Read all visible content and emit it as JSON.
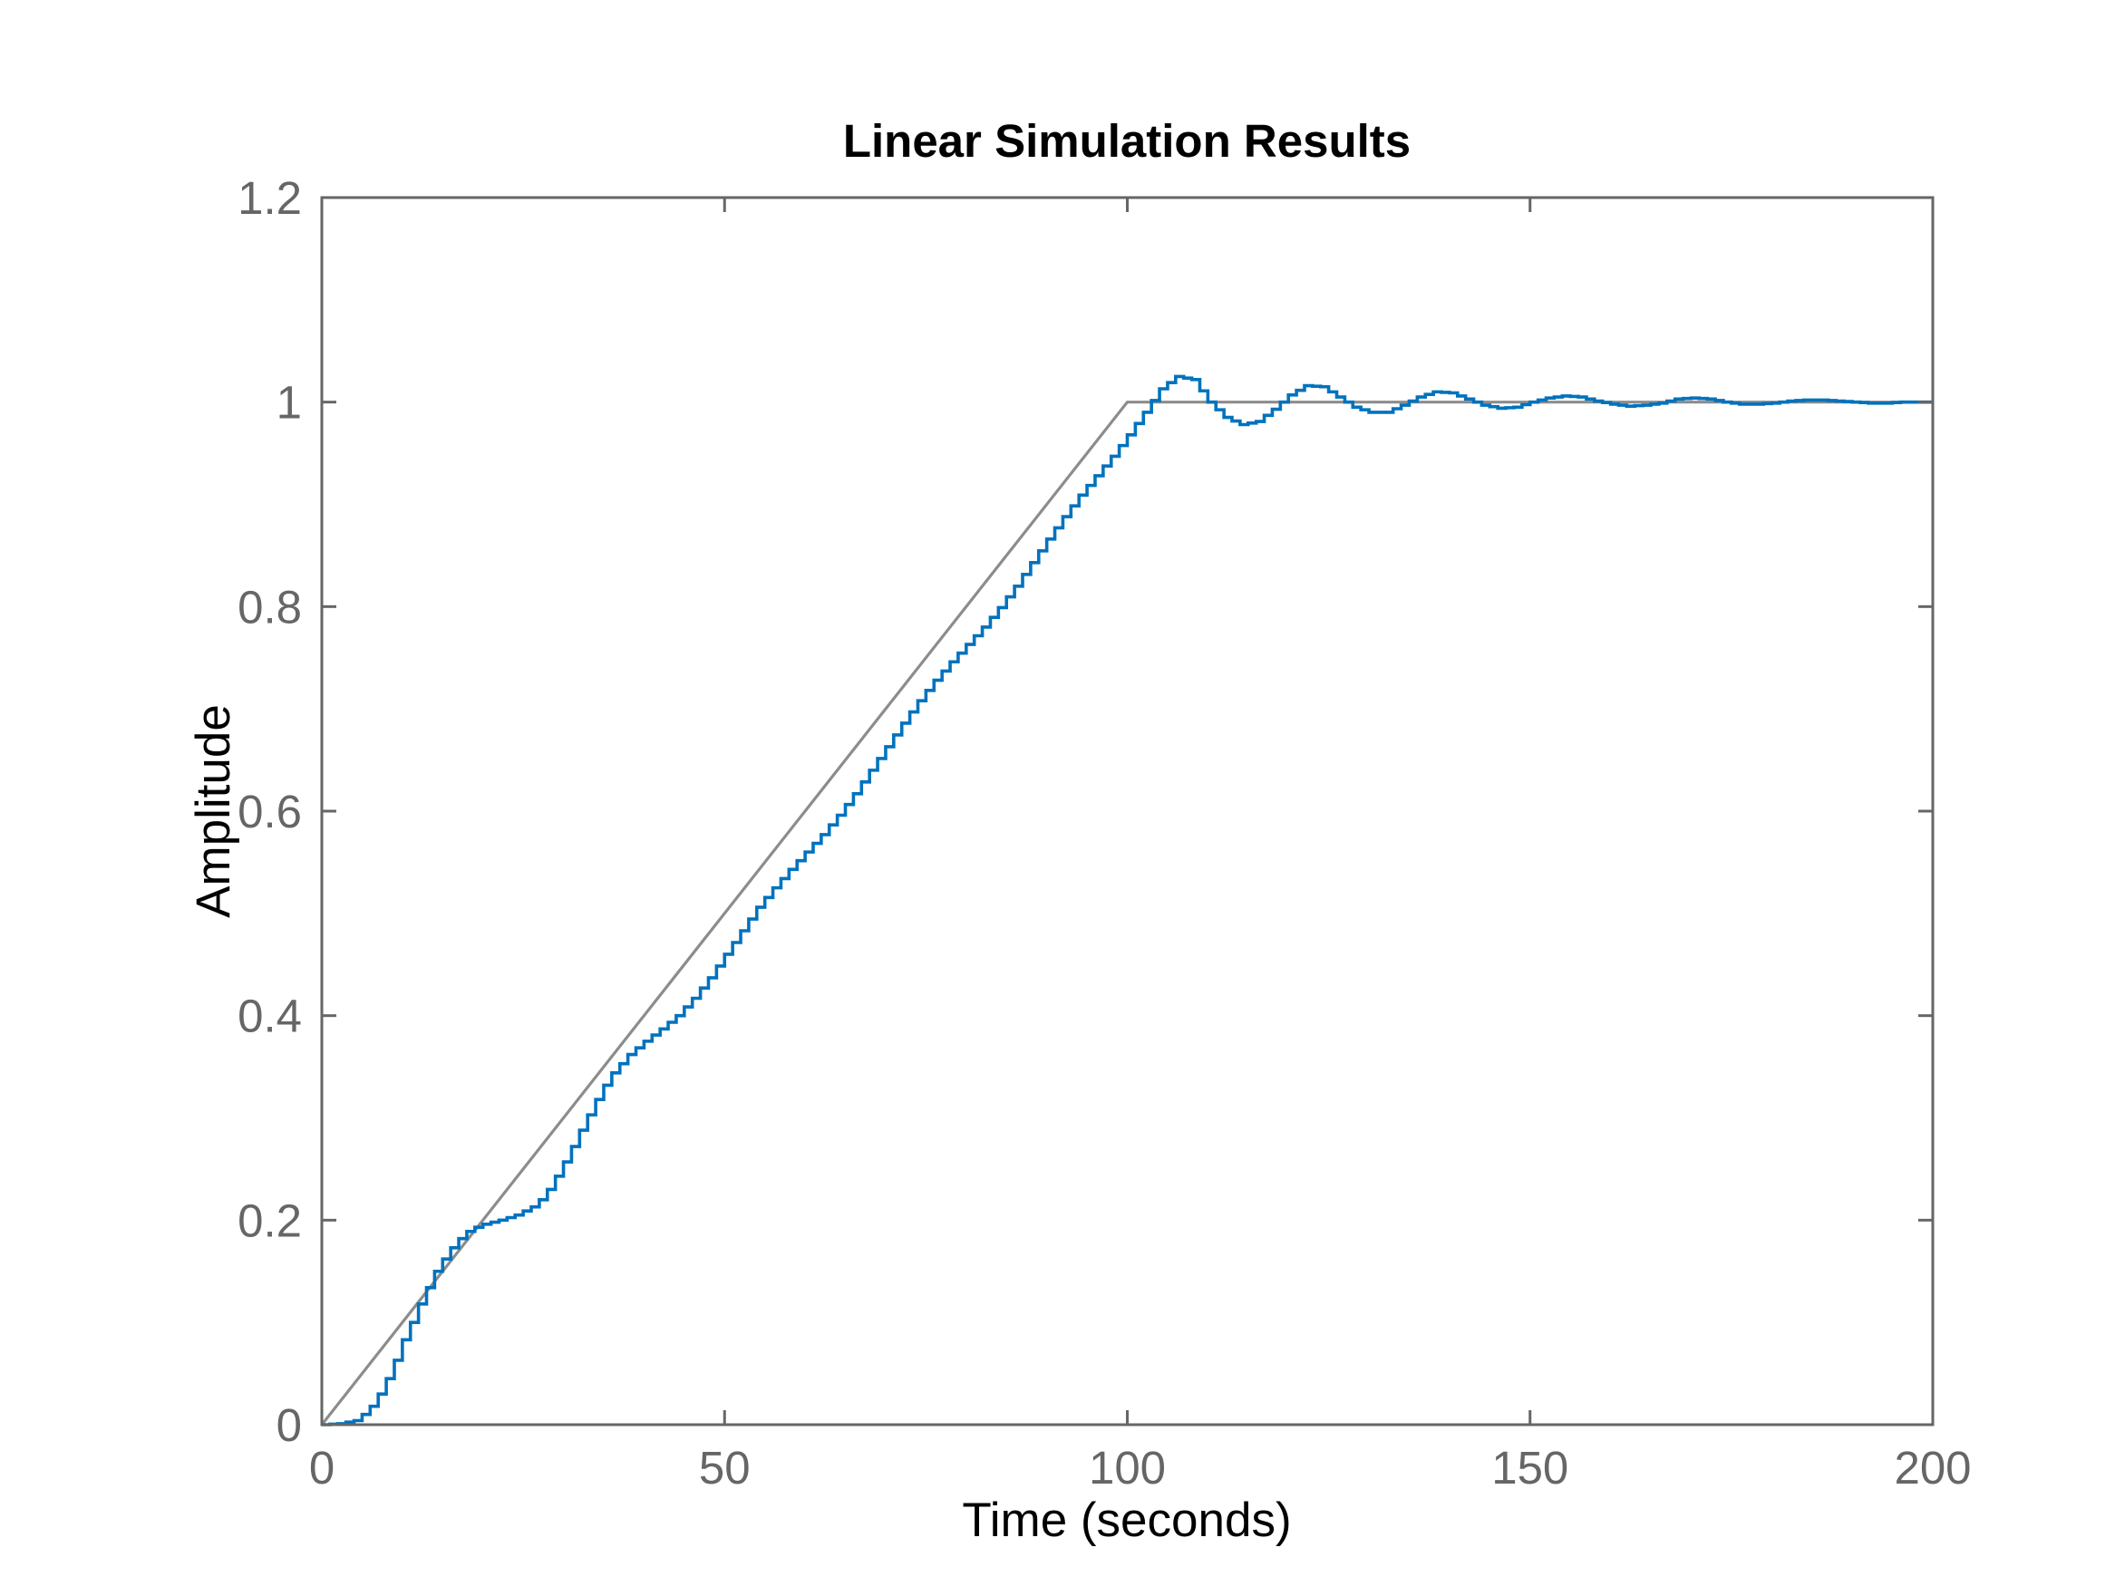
{
  "chart_data": {
    "type": "line",
    "title": "Linear Simulation Results",
    "xlabel": "Time (seconds)",
    "ylabel": "Amplitude",
    "xlim": [
      0,
      200
    ],
    "ylim": [
      0,
      1.2
    ],
    "x_ticks": [
      0,
      50,
      100,
      150,
      200
    ],
    "x_tick_labels": [
      "0",
      "50",
      "100",
      "150",
      "200"
    ],
    "y_ticks": [
      0,
      0.2,
      0.4,
      0.6,
      0.8,
      1.0,
      1.2
    ],
    "y_tick_labels": [
      "0",
      "0.2",
      "0.4",
      "0.6",
      "0.8",
      "1",
      "1.2"
    ],
    "grid": false,
    "legend": "none",
    "sample_time": 1,
    "colors": {
      "input": "#8c8c8c",
      "response": "#0072bd",
      "axes": "#666666"
    },
    "series": [
      {
        "style": "input-ramp-then-step",
        "x": [
          0,
          100,
          200
        ],
        "values": [
          0,
          1,
          1
        ]
      },
      {
        "style": "stairs",
        "x": [
          0,
          2,
          4,
          5,
          6,
          7,
          8,
          9,
          10,
          11,
          12,
          13,
          14,
          15,
          16,
          17,
          18,
          19,
          20,
          22,
          24,
          26,
          27,
          28,
          29,
          30,
          31,
          32,
          33,
          34,
          35,
          36,
          38,
          40,
          42,
          44,
          46,
          48,
          50,
          52,
          54,
          56,
          58,
          60,
          62,
          64,
          66,
          68,
          70,
          72,
          74,
          76,
          78,
          80,
          82,
          84,
          86,
          88,
          90,
          92,
          94,
          96,
          98,
          100,
          102,
          104,
          106,
          108,
          110,
          112,
          114,
          116,
          118,
          120,
          122,
          124,
          126,
          128,
          130,
          132,
          134,
          136,
          138,
          140,
          142,
          144,
          146,
          148,
          150,
          152,
          154,
          156,
          158,
          160,
          162,
          164,
          166,
          168,
          170,
          172,
          174,
          176,
          178,
          180,
          182,
          184,
          186,
          188,
          190,
          192,
          194,
          196,
          198,
          200
        ],
        "values": [
          0,
          0.001,
          0.004,
          0.01,
          0.018,
          0.03,
          0.045,
          0.063,
          0.083,
          0.1,
          0.118,
          0.134,
          0.15,
          0.162,
          0.173,
          0.182,
          0.189,
          0.193,
          0.196,
          0.2,
          0.205,
          0.213,
          0.22,
          0.23,
          0.243,
          0.257,
          0.272,
          0.288,
          0.303,
          0.318,
          0.332,
          0.344,
          0.362,
          0.375,
          0.387,
          0.4,
          0.417,
          0.437,
          0.46,
          0.483,
          0.506,
          0.525,
          0.543,
          0.56,
          0.577,
          0.596,
          0.617,
          0.64,
          0.663,
          0.686,
          0.708,
          0.728,
          0.746,
          0.763,
          0.78,
          0.799,
          0.82,
          0.843,
          0.866,
          0.888,
          0.909,
          0.928,
          0.947,
          0.968,
          0.99,
          1.013,
          1.025,
          1.022,
          1.0,
          0.985,
          0.978,
          0.981,
          0.993,
          1.007,
          1.016,
          1.015,
          1.005,
          0.995,
          0.99,
          0.99,
          0.997,
          1.005,
          1.01,
          1.009,
          1.003,
          0.997,
          0.994,
          0.995,
          1.0,
          1.004,
          1.006,
          1.005,
          1.001,
          0.998,
          0.996,
          0.997,
          0.999,
          1.003,
          1.004,
          1.003,
          1.0,
          0.998,
          0.998,
          0.999,
          1.001,
          1.002,
          1.002,
          1.001,
          1.0,
          0.999,
          0.999,
          1.0,
          1.0,
          1.0
        ]
      }
    ]
  }
}
